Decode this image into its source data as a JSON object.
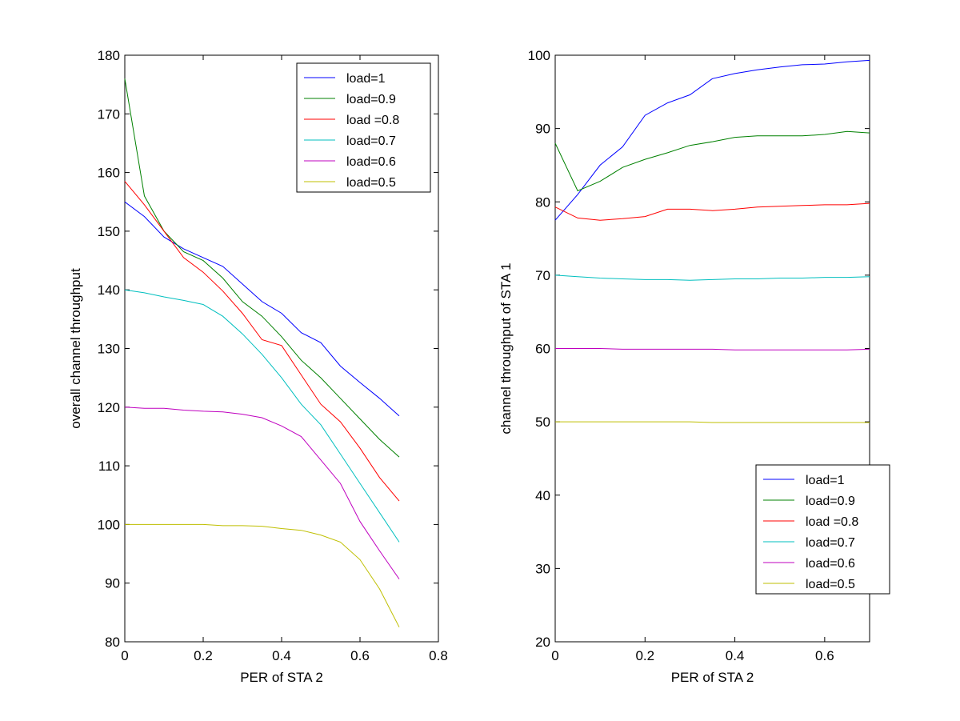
{
  "chart_data": [
    {
      "type": "line",
      "title": "",
      "xlabel": "PER of STA 2",
      "ylabel": "overall channel throughput",
      "xlim": [
        0,
        0.8
      ],
      "ylim": [
        80,
        180
      ],
      "xticks": [
        0,
        0.2,
        0.4,
        0.6,
        0.8
      ],
      "xtick_labels": [
        "0",
        "0.2",
        "0.4",
        "0.6",
        "0.8"
      ],
      "yticks": [
        80,
        90,
        100,
        110,
        120,
        130,
        140,
        150,
        160,
        170,
        180
      ],
      "ytick_labels": [
        "80",
        "90",
        "100",
        "110",
        "120",
        "130",
        "140",
        "150",
        "160",
        "170",
        "180"
      ],
      "grid": false,
      "legend_position": "top-right",
      "x": [
        0,
        0.05,
        0.1,
        0.15,
        0.2,
        0.25,
        0.3,
        0.35,
        0.4,
        0.45,
        0.5,
        0.55,
        0.6,
        0.65,
        0.7
      ],
      "series": [
        {
          "name": "load=1",
          "color": "#0000ff",
          "values": [
            155,
            152.5,
            149,
            147,
            145.5,
            144,
            141,
            138,
            136,
            132.7,
            131,
            127,
            124.2,
            121.5,
            118.5
          ]
        },
        {
          "name": "load=0.9",
          "color": "#008000",
          "values": [
            176,
            156,
            150,
            146.5,
            145,
            142,
            138,
            135.5,
            132,
            128,
            125,
            121.5,
            118,
            114.5,
            111.5
          ]
        },
        {
          "name": "load =0.8",
          "color": "#ff0000",
          "values": [
            158.5,
            154.5,
            150,
            145.5,
            143,
            139.8,
            136,
            131.5,
            130.5,
            125.5,
            120.5,
            117.5,
            113,
            108,
            104
          ]
        },
        {
          "name": "load=0.7",
          "color": "#00bfbf",
          "values": [
            140,
            139.5,
            138.8,
            138.2,
            137.5,
            135.5,
            132.5,
            129,
            125,
            120.5,
            117,
            112,
            107,
            102,
            97
          ]
        },
        {
          "name": "load=0.6",
          "color": "#bf00bf",
          "values": [
            120,
            119.8,
            119.8,
            119.5,
            119.3,
            119.2,
            118.8,
            118.2,
            116.8,
            115,
            111,
            107,
            100.5,
            95.5,
            90.7
          ]
        },
        {
          "name": "load=0.5",
          "color": "#bfbf00",
          "values": [
            100,
            100,
            100,
            100,
            100,
            99.8,
            99.8,
            99.7,
            99.3,
            99,
            98.2,
            97,
            94,
            89,
            82.5
          ]
        }
      ]
    },
    {
      "type": "line",
      "title": "",
      "xlabel": "PER of STA 2",
      "ylabel": "channel throughput of STA 1",
      "xlim": [
        0,
        0.7
      ],
      "ylim": [
        20,
        100
      ],
      "xticks": [
        0,
        0.2,
        0.4,
        0.6
      ],
      "xtick_labels": [
        "0",
        "0.2",
        "0.4",
        "0.6"
      ],
      "yticks": [
        20,
        30,
        40,
        50,
        60,
        70,
        80,
        90,
        100
      ],
      "ytick_labels": [
        "20",
        "30",
        "40",
        "50",
        "60",
        "70",
        "80",
        "90",
        "100"
      ],
      "grid": false,
      "legend_position": "bottom-right",
      "x": [
        0,
        0.05,
        0.1,
        0.15,
        0.2,
        0.25,
        0.3,
        0.35,
        0.4,
        0.45,
        0.5,
        0.55,
        0.6,
        0.65,
        0.7
      ],
      "series": [
        {
          "name": "load=1",
          "color": "#0000ff",
          "values": [
            77.5,
            81,
            85,
            87.5,
            91.8,
            93.5,
            94.6,
            96.8,
            97.5,
            98,
            98.4,
            98.7,
            98.8,
            99.1,
            99.3
          ]
        },
        {
          "name": "load=0.9",
          "color": "#008000",
          "values": [
            88,
            81.5,
            82.8,
            84.7,
            85.8,
            86.7,
            87.7,
            88.2,
            88.8,
            89,
            89,
            89,
            89.2,
            89.6,
            89.4
          ]
        },
        {
          "name": "load =0.8",
          "color": "#ff0000",
          "values": [
            79.3,
            77.8,
            77.5,
            77.7,
            78,
            79,
            79,
            78.8,
            79,
            79.3,
            79.4,
            79.5,
            79.6,
            79.6,
            79.8
          ]
        },
        {
          "name": "load=0.7",
          "color": "#00bfbf",
          "values": [
            70,
            69.8,
            69.6,
            69.5,
            69.4,
            69.4,
            69.3,
            69.4,
            69.5,
            69.5,
            69.6,
            69.6,
            69.7,
            69.7,
            69.8
          ]
        },
        {
          "name": "load=0.6",
          "color": "#bf00bf",
          "values": [
            60,
            60,
            60,
            59.9,
            59.9,
            59.9,
            59.9,
            59.9,
            59.8,
            59.8,
            59.8,
            59.8,
            59.8,
            59.8,
            59.9
          ]
        },
        {
          "name": "load=0.5",
          "color": "#bfbf00",
          "values": [
            50,
            50,
            50,
            50,
            50,
            50,
            50,
            49.9,
            49.9,
            49.9,
            49.9,
            49.9,
            49.9,
            49.9,
            49.9
          ]
        }
      ]
    }
  ]
}
